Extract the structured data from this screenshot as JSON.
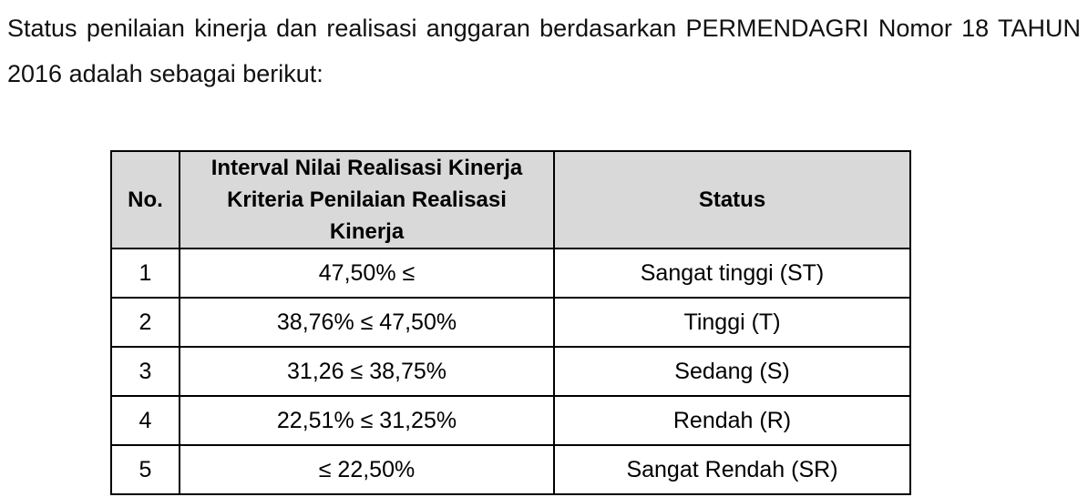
{
  "intro": {
    "line1": "Status penilaian kinerja dan realisasi anggaran berdasarkan PERMENDAGRI Nomor 18 TAHUN",
    "line2": "2016 adalah sebagai berikut:"
  },
  "table": {
    "headers": {
      "no": "No.",
      "interval": "Interval Nilai Realisasi Kinerja\nKriteria Penilaian Realisasi\nKinerja",
      "status": "Status"
    },
    "rows": [
      {
        "no": "1",
        "interval": "47,50% ≤",
        "status": "Sangat tinggi (ST)"
      },
      {
        "no": "2",
        "interval": "38,76% ≤ 47,50%",
        "status": "Tinggi (T)"
      },
      {
        "no": "3",
        "interval": "31,26 ≤ 38,75%",
        "status": "Sedang (S)"
      },
      {
        "no": "4",
        "interval": "22,51% ≤ 31,25%",
        "status": "Rendah (R)"
      },
      {
        "no": "5",
        "interval": "≤ 22,50%",
        "status": "Sangat Rendah (SR)"
      }
    ],
    "colors": {
      "header_background": "#d9d9d9",
      "border": "#000000",
      "text": "#000000"
    }
  }
}
